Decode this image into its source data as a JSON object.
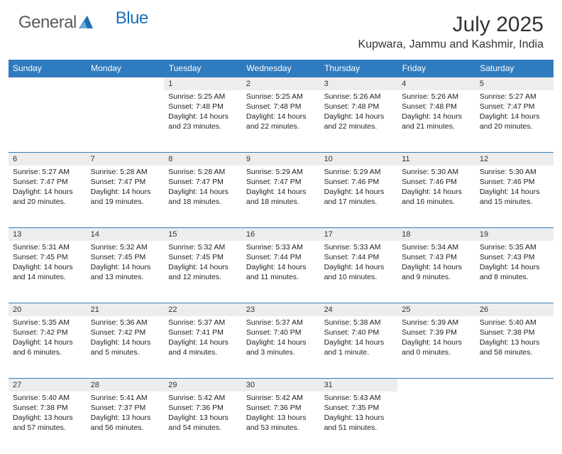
{
  "brand": {
    "part1": "General",
    "part2": "Blue"
  },
  "title": "July 2025",
  "location": "Kupwara, Jammu and Kashmir, India",
  "colors": {
    "header_bg": "#2f7bbf",
    "header_text": "#ffffff",
    "daynum_bg": "#ededed",
    "border": "#3a7db8",
    "logo_gray": "#5a5a5a",
    "logo_blue": "#1e6fb8",
    "text": "#222222"
  },
  "weekdays": [
    "Sunday",
    "Monday",
    "Tuesday",
    "Wednesday",
    "Thursday",
    "Friday",
    "Saturday"
  ],
  "weeks": [
    [
      null,
      null,
      {
        "d": "1",
        "sr": "5:25 AM",
        "ss": "7:48 PM",
        "dl": "14 hours and 23 minutes."
      },
      {
        "d": "2",
        "sr": "5:25 AM",
        "ss": "7:48 PM",
        "dl": "14 hours and 22 minutes."
      },
      {
        "d": "3",
        "sr": "5:26 AM",
        "ss": "7:48 PM",
        "dl": "14 hours and 22 minutes."
      },
      {
        "d": "4",
        "sr": "5:26 AM",
        "ss": "7:48 PM",
        "dl": "14 hours and 21 minutes."
      },
      {
        "d": "5",
        "sr": "5:27 AM",
        "ss": "7:47 PM",
        "dl": "14 hours and 20 minutes."
      }
    ],
    [
      {
        "d": "6",
        "sr": "5:27 AM",
        "ss": "7:47 PM",
        "dl": "14 hours and 20 minutes."
      },
      {
        "d": "7",
        "sr": "5:28 AM",
        "ss": "7:47 PM",
        "dl": "14 hours and 19 minutes."
      },
      {
        "d": "8",
        "sr": "5:28 AM",
        "ss": "7:47 PM",
        "dl": "14 hours and 18 minutes."
      },
      {
        "d": "9",
        "sr": "5:29 AM",
        "ss": "7:47 PM",
        "dl": "14 hours and 18 minutes."
      },
      {
        "d": "10",
        "sr": "5:29 AM",
        "ss": "7:46 PM",
        "dl": "14 hours and 17 minutes."
      },
      {
        "d": "11",
        "sr": "5:30 AM",
        "ss": "7:46 PM",
        "dl": "14 hours and 16 minutes."
      },
      {
        "d": "12",
        "sr": "5:30 AM",
        "ss": "7:46 PM",
        "dl": "14 hours and 15 minutes."
      }
    ],
    [
      {
        "d": "13",
        "sr": "5:31 AM",
        "ss": "7:45 PM",
        "dl": "14 hours and 14 minutes."
      },
      {
        "d": "14",
        "sr": "5:32 AM",
        "ss": "7:45 PM",
        "dl": "14 hours and 13 minutes."
      },
      {
        "d": "15",
        "sr": "5:32 AM",
        "ss": "7:45 PM",
        "dl": "14 hours and 12 minutes."
      },
      {
        "d": "16",
        "sr": "5:33 AM",
        "ss": "7:44 PM",
        "dl": "14 hours and 11 minutes."
      },
      {
        "d": "17",
        "sr": "5:33 AM",
        "ss": "7:44 PM",
        "dl": "14 hours and 10 minutes."
      },
      {
        "d": "18",
        "sr": "5:34 AM",
        "ss": "7:43 PM",
        "dl": "14 hours and 9 minutes."
      },
      {
        "d": "19",
        "sr": "5:35 AM",
        "ss": "7:43 PM",
        "dl": "14 hours and 8 minutes."
      }
    ],
    [
      {
        "d": "20",
        "sr": "5:35 AM",
        "ss": "7:42 PM",
        "dl": "14 hours and 6 minutes."
      },
      {
        "d": "21",
        "sr": "5:36 AM",
        "ss": "7:42 PM",
        "dl": "14 hours and 5 minutes."
      },
      {
        "d": "22",
        "sr": "5:37 AM",
        "ss": "7:41 PM",
        "dl": "14 hours and 4 minutes."
      },
      {
        "d": "23",
        "sr": "5:37 AM",
        "ss": "7:40 PM",
        "dl": "14 hours and 3 minutes."
      },
      {
        "d": "24",
        "sr": "5:38 AM",
        "ss": "7:40 PM",
        "dl": "14 hours and 1 minute."
      },
      {
        "d": "25",
        "sr": "5:39 AM",
        "ss": "7:39 PM",
        "dl": "14 hours and 0 minutes."
      },
      {
        "d": "26",
        "sr": "5:40 AM",
        "ss": "7:38 PM",
        "dl": "13 hours and 58 minutes."
      }
    ],
    [
      {
        "d": "27",
        "sr": "5:40 AM",
        "ss": "7:38 PM",
        "dl": "13 hours and 57 minutes."
      },
      {
        "d": "28",
        "sr": "5:41 AM",
        "ss": "7:37 PM",
        "dl": "13 hours and 56 minutes."
      },
      {
        "d": "29",
        "sr": "5:42 AM",
        "ss": "7:36 PM",
        "dl": "13 hours and 54 minutes."
      },
      {
        "d": "30",
        "sr": "5:42 AM",
        "ss": "7:36 PM",
        "dl": "13 hours and 53 minutes."
      },
      {
        "d": "31",
        "sr": "5:43 AM",
        "ss": "7:35 PM",
        "dl": "13 hours and 51 minutes."
      },
      null,
      null
    ]
  ],
  "labels": {
    "sunrise": "Sunrise:",
    "sunset": "Sunset:",
    "daylight": "Daylight:"
  }
}
